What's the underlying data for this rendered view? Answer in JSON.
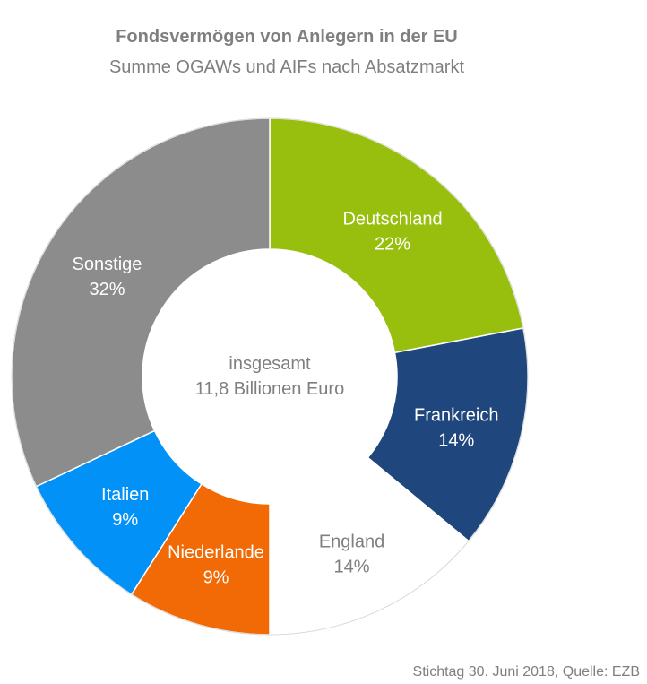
{
  "chart_data": {
    "type": "pie",
    "title": "Fondsvermögen von Anlegern in der EU",
    "subtitle": "Summe OGAWs und AIFs nach Absatzmarkt",
    "center_text": [
      "insgesamt",
      "11,8 Billionen Euro"
    ],
    "slices": [
      {
        "label": "Deutschland",
        "value": 22,
        "value_label": "22%",
        "color": "#99bf0e",
        "text_color": "#ffffff"
      },
      {
        "label": "Frankreich",
        "value": 14,
        "value_label": "14%",
        "color": "#1f477d",
        "text_color": "#ffffff"
      },
      {
        "label": "England",
        "value": 14,
        "value_label": "14%",
        "color": "#ffffff",
        "text_color": "#7f7f7f"
      },
      {
        "label": "Niederlande",
        "value": 9,
        "value_label": "9%",
        "color": "#f26a05",
        "text_color": "#ffffff"
      },
      {
        "label": "Italien",
        "value": 9,
        "value_label": "9%",
        "color": "#0291f7",
        "text_color": "#ffffff"
      },
      {
        "label": "Sonstige",
        "value": 32,
        "value_label": "32%",
        "color": "#8c8c8c",
        "text_color": "#ffffff"
      }
    ],
    "source": "Stichtag 30. Juni 2018, Quelle: EZB"
  }
}
